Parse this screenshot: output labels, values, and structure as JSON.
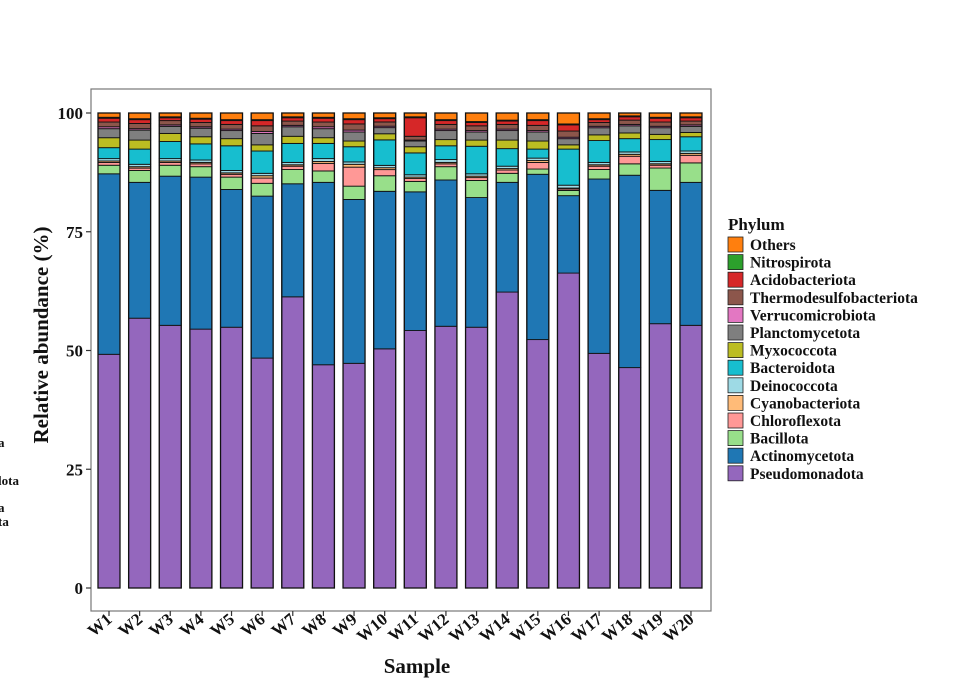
{
  "chart_data": {
    "type": "bar",
    "stacked": true,
    "title": "",
    "xlabel": "Sample",
    "ylabel": "Relative abundance (%)",
    "ylim": [
      0,
      100
    ],
    "yticks": [
      0,
      25,
      50,
      75,
      100
    ],
    "grid": false,
    "legend_position": "right",
    "legend_title": "Phylum",
    "categories": [
      "W1",
      "W2",
      "W3",
      "W4",
      "W5",
      "W6",
      "W7",
      "W8",
      "W9",
      "W10",
      "W11",
      "W12",
      "W13",
      "W14",
      "W15",
      "W16",
      "W17",
      "W18",
      "W19",
      "W20"
    ],
    "series": [
      {
        "name": "Pseudomonadota",
        "color": "#9467bd",
        "values": [
          49.2,
          56.8,
          55.3,
          54.5,
          54.9,
          48.4,
          61.3,
          47.0,
          47.3,
          50.7,
          54.2,
          55.1,
          54.9,
          62.3,
          52.3,
          66.3,
          49.4,
          46.4,
          55.7,
          55.3
        ]
      },
      {
        "name": "Actinomycetota",
        "color": "#1f77b4",
        "values": [
          38.0,
          28.6,
          31.4,
          32.0,
          29.0,
          34.1,
          23.8,
          38.4,
          34.5,
          33.4,
          29.2,
          30.8,
          27.3,
          23.1,
          34.8,
          16.3,
          36.7,
          40.5,
          28.1,
          30.1
        ]
      },
      {
        "name": "Bacillota",
        "color": "#98df8a",
        "values": [
          1.8,
          2.5,
          2.3,
          2.2,
          2.6,
          2.7,
          3.0,
          2.4,
          2.8,
          3.3,
          2.2,
          2.8,
          3.6,
          1.9,
          1.1,
          1.1,
          2.0,
          2.4,
          4.7,
          4.1
        ]
      },
      {
        "name": "Chloroflexota",
        "color": "#ff9896",
        "values": [
          0.6,
          0.5,
          0.6,
          0.6,
          0.6,
          1.1,
          0.7,
          1.6,
          4.0,
          1.3,
          0.6,
          0.6,
          0.6,
          0.7,
          1.4,
          0.3,
          0.7,
          1.6,
          0.6,
          1.6
        ]
      },
      {
        "name": "Cyanobacteriota",
        "color": "#ffbb78",
        "values": [
          0.3,
          0.3,
          0.3,
          0.3,
          0.3,
          0.5,
          0.3,
          0.4,
          0.6,
          0.4,
          0.3,
          0.3,
          0.3,
          0.3,
          0.4,
          0.2,
          0.3,
          0.4,
          0.3,
          0.4
        ]
      },
      {
        "name": "Deinococcota",
        "color": "#9edae5",
        "values": [
          0.5,
          0.5,
          0.5,
          0.5,
          0.5,
          0.5,
          0.5,
          0.6,
          0.5,
          0.5,
          0.5,
          0.6,
          0.5,
          0.5,
          0.5,
          0.6,
          0.5,
          0.5,
          0.5,
          0.5
        ]
      },
      {
        "name": "Bacteroidota",
        "color": "#17becf",
        "values": [
          2.3,
          3.2,
          3.6,
          3.4,
          5.2,
          4.7,
          4.0,
          3.2,
          3.2,
          5.4,
          4.6,
          2.9,
          5.8,
          3.7,
          1.9,
          7.6,
          4.6,
          2.8,
          4.6,
          3.0
        ]
      },
      {
        "name": "Myxococcota",
        "color": "#bcbd22",
        "values": [
          2.1,
          1.9,
          1.7,
          1.5,
          1.5,
          1.3,
          1.5,
          1.2,
          1.2,
          1.3,
          1.3,
          1.3,
          1.3,
          1.8,
          1.7,
          0.9,
          1.2,
          1.2,
          1.1,
          0.9
        ]
      },
      {
        "name": "Planctomycetota",
        "color": "#7f7f7f",
        "values": [
          1.9,
          2.1,
          1.5,
          1.8,
          1.7,
          2.4,
          2.0,
          1.9,
          1.9,
          1.3,
          1.2,
          1.9,
          1.7,
          2.0,
          1.9,
          1.3,
          1.5,
          1.5,
          1.4,
          1.3
        ]
      },
      {
        "name": "Verrucomicrobiota",
        "color": "#e377c2",
        "values": [
          0.4,
          0.3,
          0.3,
          0.3,
          0.3,
          0.4,
          0.3,
          0.4,
          0.4,
          0.3,
          0.2,
          0.3,
          0.3,
          0.3,
          0.3,
          0.3,
          0.3,
          0.3,
          0.3,
          0.3
        ]
      },
      {
        "name": "Thermodesulfobacteriota",
        "color": "#8c564b",
        "values": [
          1.0,
          1.1,
          0.9,
          0.9,
          1.0,
          1.2,
          0.9,
          1.0,
          1.3,
          0.9,
          0.8,
          1.0,
          1.0,
          1.0,
          1.1,
          1.3,
          0.8,
          0.9,
          0.9,
          0.8
        ]
      },
      {
        "name": "Acidobacteriota",
        "color": "#d62728",
        "values": [
          0.8,
          0.8,
          0.6,
          0.7,
          0.8,
          1.1,
          0.7,
          0.8,
          0.9,
          0.7,
          3.9,
          0.8,
          0.7,
          0.7,
          1.0,
          1.3,
          0.6,
          0.7,
          0.8,
          0.7
        ]
      },
      {
        "name": "Nitrospirota",
        "color": "#2ca02c",
        "values": [
          0.2,
          0.2,
          0.2,
          0.2,
          0.2,
          0.2,
          0.2,
          0.2,
          0.2,
          0.2,
          0.2,
          0.2,
          0.2,
          0.2,
          0.2,
          0.2,
          0.2,
          0.2,
          0.2,
          0.2
        ]
      },
      {
        "name": "Others",
        "color": "#ff7f0e",
        "values": [
          0.9,
          1.2,
          0.8,
          1.1,
          1.4,
          1.4,
          0.8,
          0.9,
          1.2,
          1.0,
          0.8,
          1.4,
          1.8,
          1.5,
          1.4,
          2.3,
          1.2,
          0.6,
          0.9,
          0.8
        ]
      }
    ]
  },
  "left_edge_fragments": [
    "a",
    "lota",
    "a",
    "ta"
  ]
}
